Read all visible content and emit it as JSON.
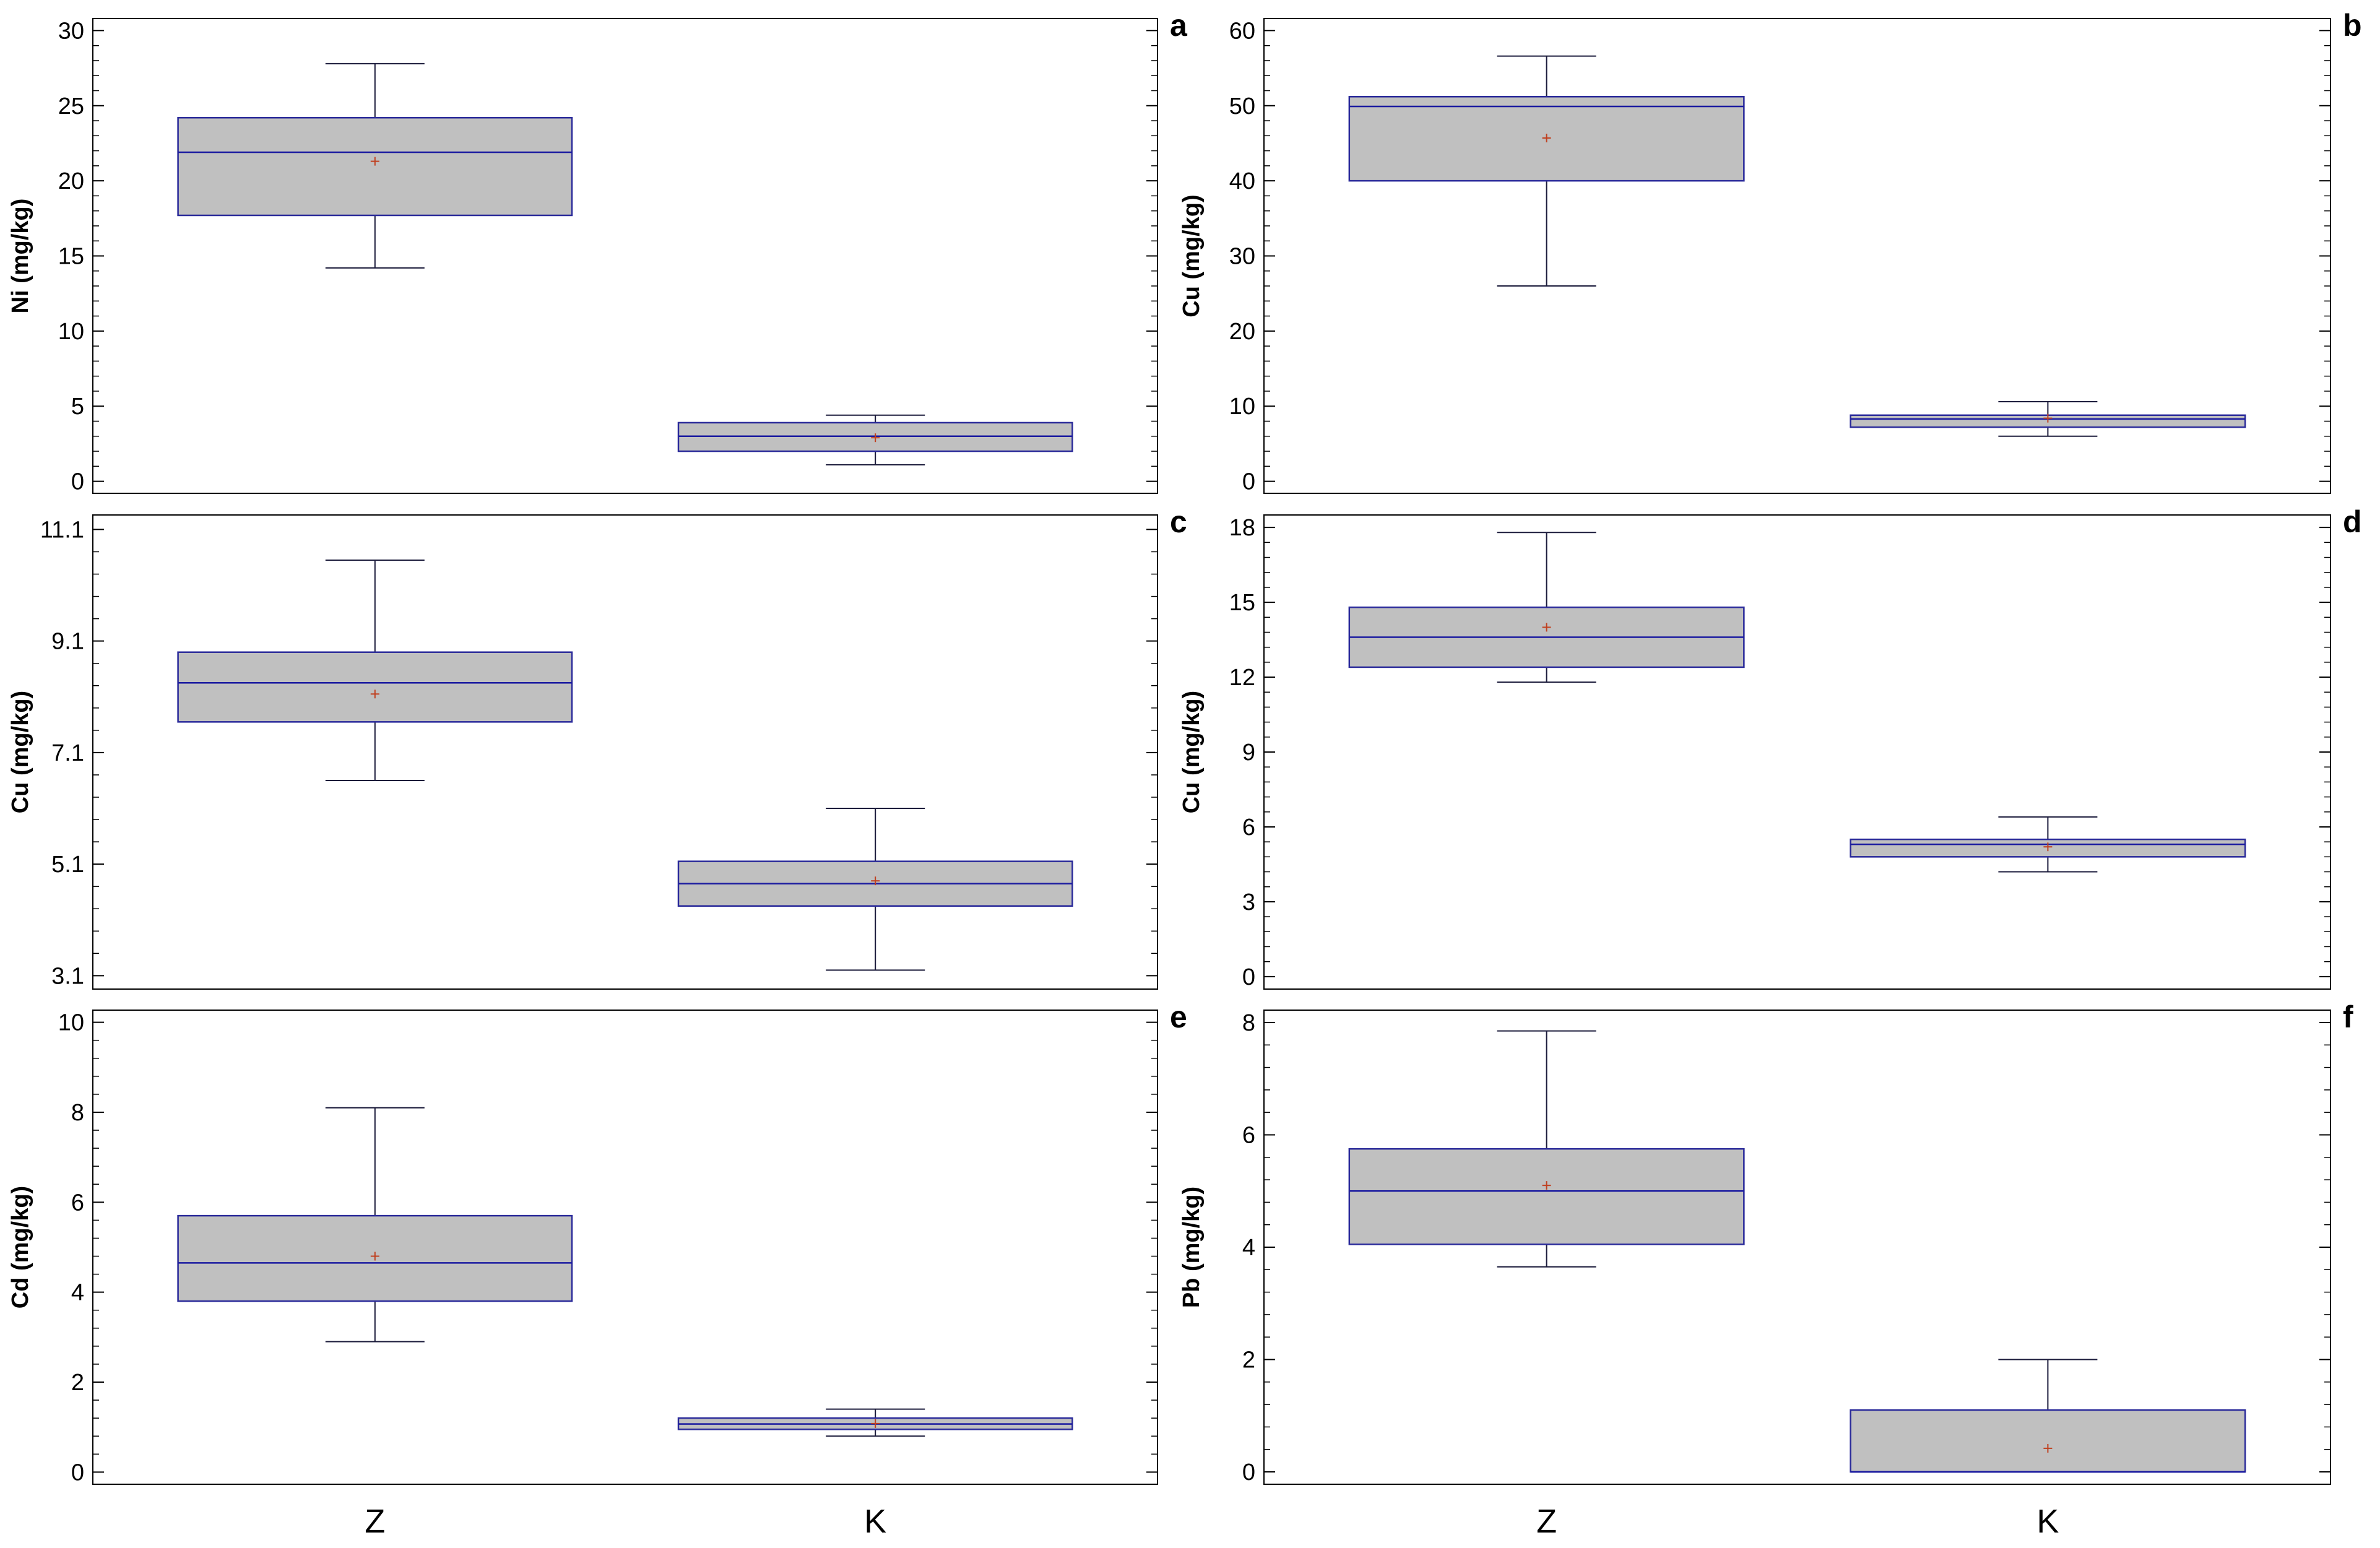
{
  "figure": {
    "categories": [
      "Z",
      "K"
    ],
    "colors": {
      "box_fill": "#c0c0c0",
      "box_stroke": "#2a2a9a",
      "median": "#1a1aa0",
      "whisker": "#1a1a3a",
      "mean_marker": "#c04020",
      "frame": "#000000"
    }
  },
  "chart_data": [
    {
      "panel": "a",
      "type": "box",
      "ylabel": "Ni (mg/kg)",
      "categories": [
        "Z",
        "K"
      ],
      "ylim": [
        -0.8,
        30.8
      ],
      "yticks": [
        0,
        5,
        10,
        15,
        20,
        25,
        30
      ],
      "ytick_labels": [
        "0",
        "5",
        "10",
        "15",
        "20",
        "25",
        "30"
      ],
      "series": [
        {
          "name": "Z",
          "min": 14.2,
          "q1": 17.7,
          "median": 21.9,
          "q3": 24.2,
          "max": 27.8,
          "mean": 21.3
        },
        {
          "name": "K",
          "min": 1.1,
          "q1": 2.0,
          "median": 3.0,
          "q3": 3.9,
          "max": 4.4,
          "mean": 2.9
        }
      ]
    },
    {
      "panel": "b",
      "type": "box",
      "ylabel": "Cu (mg/kg)",
      "categories": [
        "Z",
        "K"
      ],
      "ylim": [
        -1.6,
        61.6
      ],
      "yticks": [
        0,
        10,
        20,
        30,
        40,
        50,
        60
      ],
      "ytick_labels": [
        "0",
        "10",
        "20",
        "30",
        "40",
        "50",
        "60"
      ],
      "series": [
        {
          "name": "Z",
          "min": 26.0,
          "q1": 40.0,
          "median": 49.9,
          "q3": 51.2,
          "max": 56.6,
          "mean": 45.7
        },
        {
          "name": "K",
          "min": 6.0,
          "q1": 7.2,
          "median": 8.3,
          "q3": 8.8,
          "max": 10.6,
          "mean": 8.4
        }
      ]
    },
    {
      "panel": "c",
      "type": "box",
      "ylabel": "Cu (mg/kg)",
      "categories": [
        "Z",
        "K"
      ],
      "ylim": [
        2.86,
        11.36
      ],
      "yticks": [
        3.1,
        5.1,
        7.1,
        9.1,
        11.1
      ],
      "ytick_labels": [
        "3.1",
        "5.1",
        "7.1",
        "9.1",
        "11.1"
      ],
      "series": [
        {
          "name": "Z",
          "min": 6.6,
          "q1": 7.65,
          "median": 8.35,
          "q3": 8.9,
          "max": 10.55,
          "mean": 8.15
        },
        {
          "name": "K",
          "min": 3.2,
          "q1": 4.35,
          "median": 4.75,
          "q3": 5.15,
          "max": 6.1,
          "mean": 4.8
        }
      ]
    },
    {
      "panel": "d",
      "type": "box",
      "ylabel": "Cu (mg/kg)",
      "categories": [
        "Z",
        "K"
      ],
      "ylim": [
        -0.5,
        18.5
      ],
      "yticks": [
        0,
        3,
        6,
        9,
        12,
        15,
        18
      ],
      "ytick_labels": [
        "0",
        "3",
        "6",
        "9",
        "12",
        "15",
        "18"
      ],
      "series": [
        {
          "name": "Z",
          "min": 11.8,
          "q1": 12.4,
          "median": 13.6,
          "q3": 14.8,
          "max": 17.8,
          "mean": 14.0
        },
        {
          "name": "K",
          "min": 4.2,
          "q1": 4.8,
          "median": 5.3,
          "q3": 5.5,
          "max": 6.4,
          "mean": 5.2
        }
      ]
    },
    {
      "panel": "e",
      "type": "box",
      "ylabel": "Cd (mg/kg)",
      "categories": [
        "Z",
        "K"
      ],
      "ylim": [
        -0.27,
        10.27
      ],
      "yticks": [
        0,
        2,
        4,
        6,
        8,
        10
      ],
      "ytick_labels": [
        "0",
        "2",
        "4",
        "6",
        "8",
        "10"
      ],
      "series": [
        {
          "name": "Z",
          "min": 2.9,
          "q1": 3.8,
          "median": 4.65,
          "q3": 5.7,
          "max": 8.1,
          "mean": 4.8
        },
        {
          "name": "K",
          "min": 0.8,
          "q1": 0.95,
          "median": 1.07,
          "q3": 1.2,
          "max": 1.4,
          "mean": 1.08
        }
      ]
    },
    {
      "panel": "f",
      "type": "box",
      "ylabel": "Pb (mg/kg)",
      "categories": [
        "Z",
        "K"
      ],
      "ylim": [
        -0.22,
        8.22
      ],
      "yticks": [
        0,
        2,
        4,
        6,
        8
      ],
      "ytick_labels": [
        "0",
        "2",
        "4",
        "6",
        "8"
      ],
      "series": [
        {
          "name": "Z",
          "min": 3.65,
          "q1": 4.05,
          "median": 5.0,
          "q3": 5.75,
          "max": 7.85,
          "mean": 5.1
        },
        {
          "name": "K",
          "min": 0.0,
          "q1": 0.0,
          "median": 0.0,
          "q3": 1.1,
          "max": 2.0,
          "mean": 0.42
        }
      ]
    }
  ]
}
